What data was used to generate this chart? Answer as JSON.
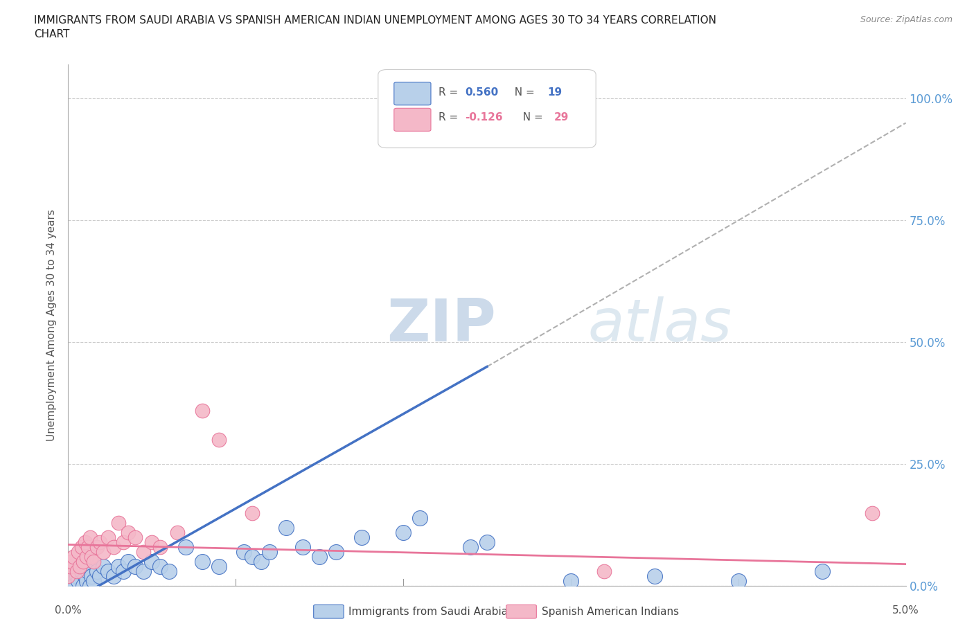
{
  "title_line1": "IMMIGRANTS FROM SAUDI ARABIA VS SPANISH AMERICAN INDIAN UNEMPLOYMENT AMONG AGES 30 TO 34 YEARS CORRELATION",
  "title_line2": "CHART",
  "source": "Source: ZipAtlas.com",
  "ylabel": "Unemployment Among Ages 30 to 34 years",
  "ytick_labels": [
    "0.0%",
    "25.0%",
    "50.0%",
    "75.0%",
    "100.0%"
  ],
  "ytick_values": [
    0,
    25,
    50,
    75,
    100
  ],
  "xlim": [
    0.0,
    5.0
  ],
  "ylim": [
    0.0,
    107.0
  ],
  "r_saudi": 0.56,
  "n_saudi": 19,
  "r_spanish": -0.126,
  "n_spanish": 29,
  "blue_fill": "#b8d0ea",
  "blue_edge": "#4472C4",
  "pink_fill": "#f4b8c8",
  "pink_edge": "#E8759A",
  "gray_dash_color": "#b0b0b0",
  "right_label_color": "#5B9BD5",
  "legend_label_saudi": "Immigrants from Saudi Arabia",
  "legend_label_spanish": "Spanish American Indians",
  "blue_line_x": [
    0.18,
    2.5
  ],
  "blue_line_y": [
    0.0,
    45.0
  ],
  "gray_line_x": [
    2.5,
    5.0
  ],
  "gray_line_y": [
    45.0,
    95.0
  ],
  "pink_line_x": [
    0.0,
    5.0
  ],
  "pink_line_y": [
    8.5,
    4.5
  ],
  "saudi_x": [
    0.0,
    0.03,
    0.05,
    0.06,
    0.08,
    0.09,
    0.1,
    0.11,
    0.12,
    0.13,
    0.14,
    0.15,
    0.17,
    0.19,
    0.21,
    0.24,
    0.27,
    0.3,
    0.33,
    0.36,
    0.4,
    0.45,
    0.5,
    0.55,
    0.6,
    0.7,
    0.8,
    0.9,
    1.05,
    1.1,
    1.15,
    1.2,
    1.3,
    1.4,
    1.5,
    1.6,
    1.75,
    2.0,
    2.1,
    2.4,
    2.5,
    3.0,
    3.5,
    4.0,
    4.5
  ],
  "saudi_y": [
    1,
    0,
    2,
    1,
    3,
    0,
    2,
    1,
    3,
    0,
    2,
    1,
    3,
    2,
    4,
    3,
    2,
    4,
    3,
    5,
    4,
    3,
    5,
    4,
    3,
    8,
    5,
    4,
    7,
    6,
    5,
    7,
    12,
    8,
    6,
    7,
    10,
    11,
    14,
    8,
    9,
    1,
    2,
    1,
    3
  ],
  "spanish_x": [
    0.0,
    0.01,
    0.02,
    0.03,
    0.05,
    0.06,
    0.07,
    0.08,
    0.09,
    0.1,
    0.11,
    0.12,
    0.13,
    0.14,
    0.15,
    0.17,
    0.19,
    0.21,
    0.24,
    0.27,
    0.3,
    0.33,
    0.36,
    0.4,
    0.45,
    0.5,
    0.55,
    0.65,
    0.8,
    0.9,
    1.1,
    4.8,
    3.2
  ],
  "spanish_y": [
    2,
    4,
    5,
    6,
    3,
    7,
    4,
    8,
    5,
    9,
    6,
    8,
    10,
    6,
    5,
    8,
    9,
    7,
    10,
    8,
    13,
    9,
    11,
    10,
    7,
    9,
    8,
    11,
    36,
    30,
    15,
    15,
    3
  ]
}
